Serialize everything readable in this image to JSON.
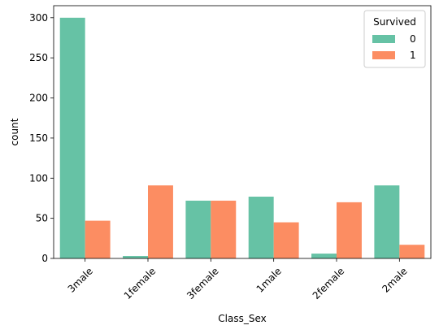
{
  "chart_data": {
    "type": "bar",
    "title": "",
    "xlabel": "Class_Sex",
    "ylabel": "count",
    "categories": [
      "3male",
      "1female",
      "3female",
      "1male",
      "2female",
      "2male"
    ],
    "series": [
      {
        "name": "0",
        "values": [
          300,
          3,
          72,
          77,
          6,
          91
        ],
        "color": "#66c2a5"
      },
      {
        "name": "1",
        "values": [
          47,
          91,
          72,
          45,
          70,
          17
        ],
        "color": "#fc8d62"
      }
    ],
    "ylim": [
      0,
      315
    ],
    "yticks": [
      0,
      50,
      100,
      150,
      200,
      250,
      300
    ],
    "grid": false,
    "legend": {
      "title": "Survived",
      "placement": "top-right"
    }
  }
}
